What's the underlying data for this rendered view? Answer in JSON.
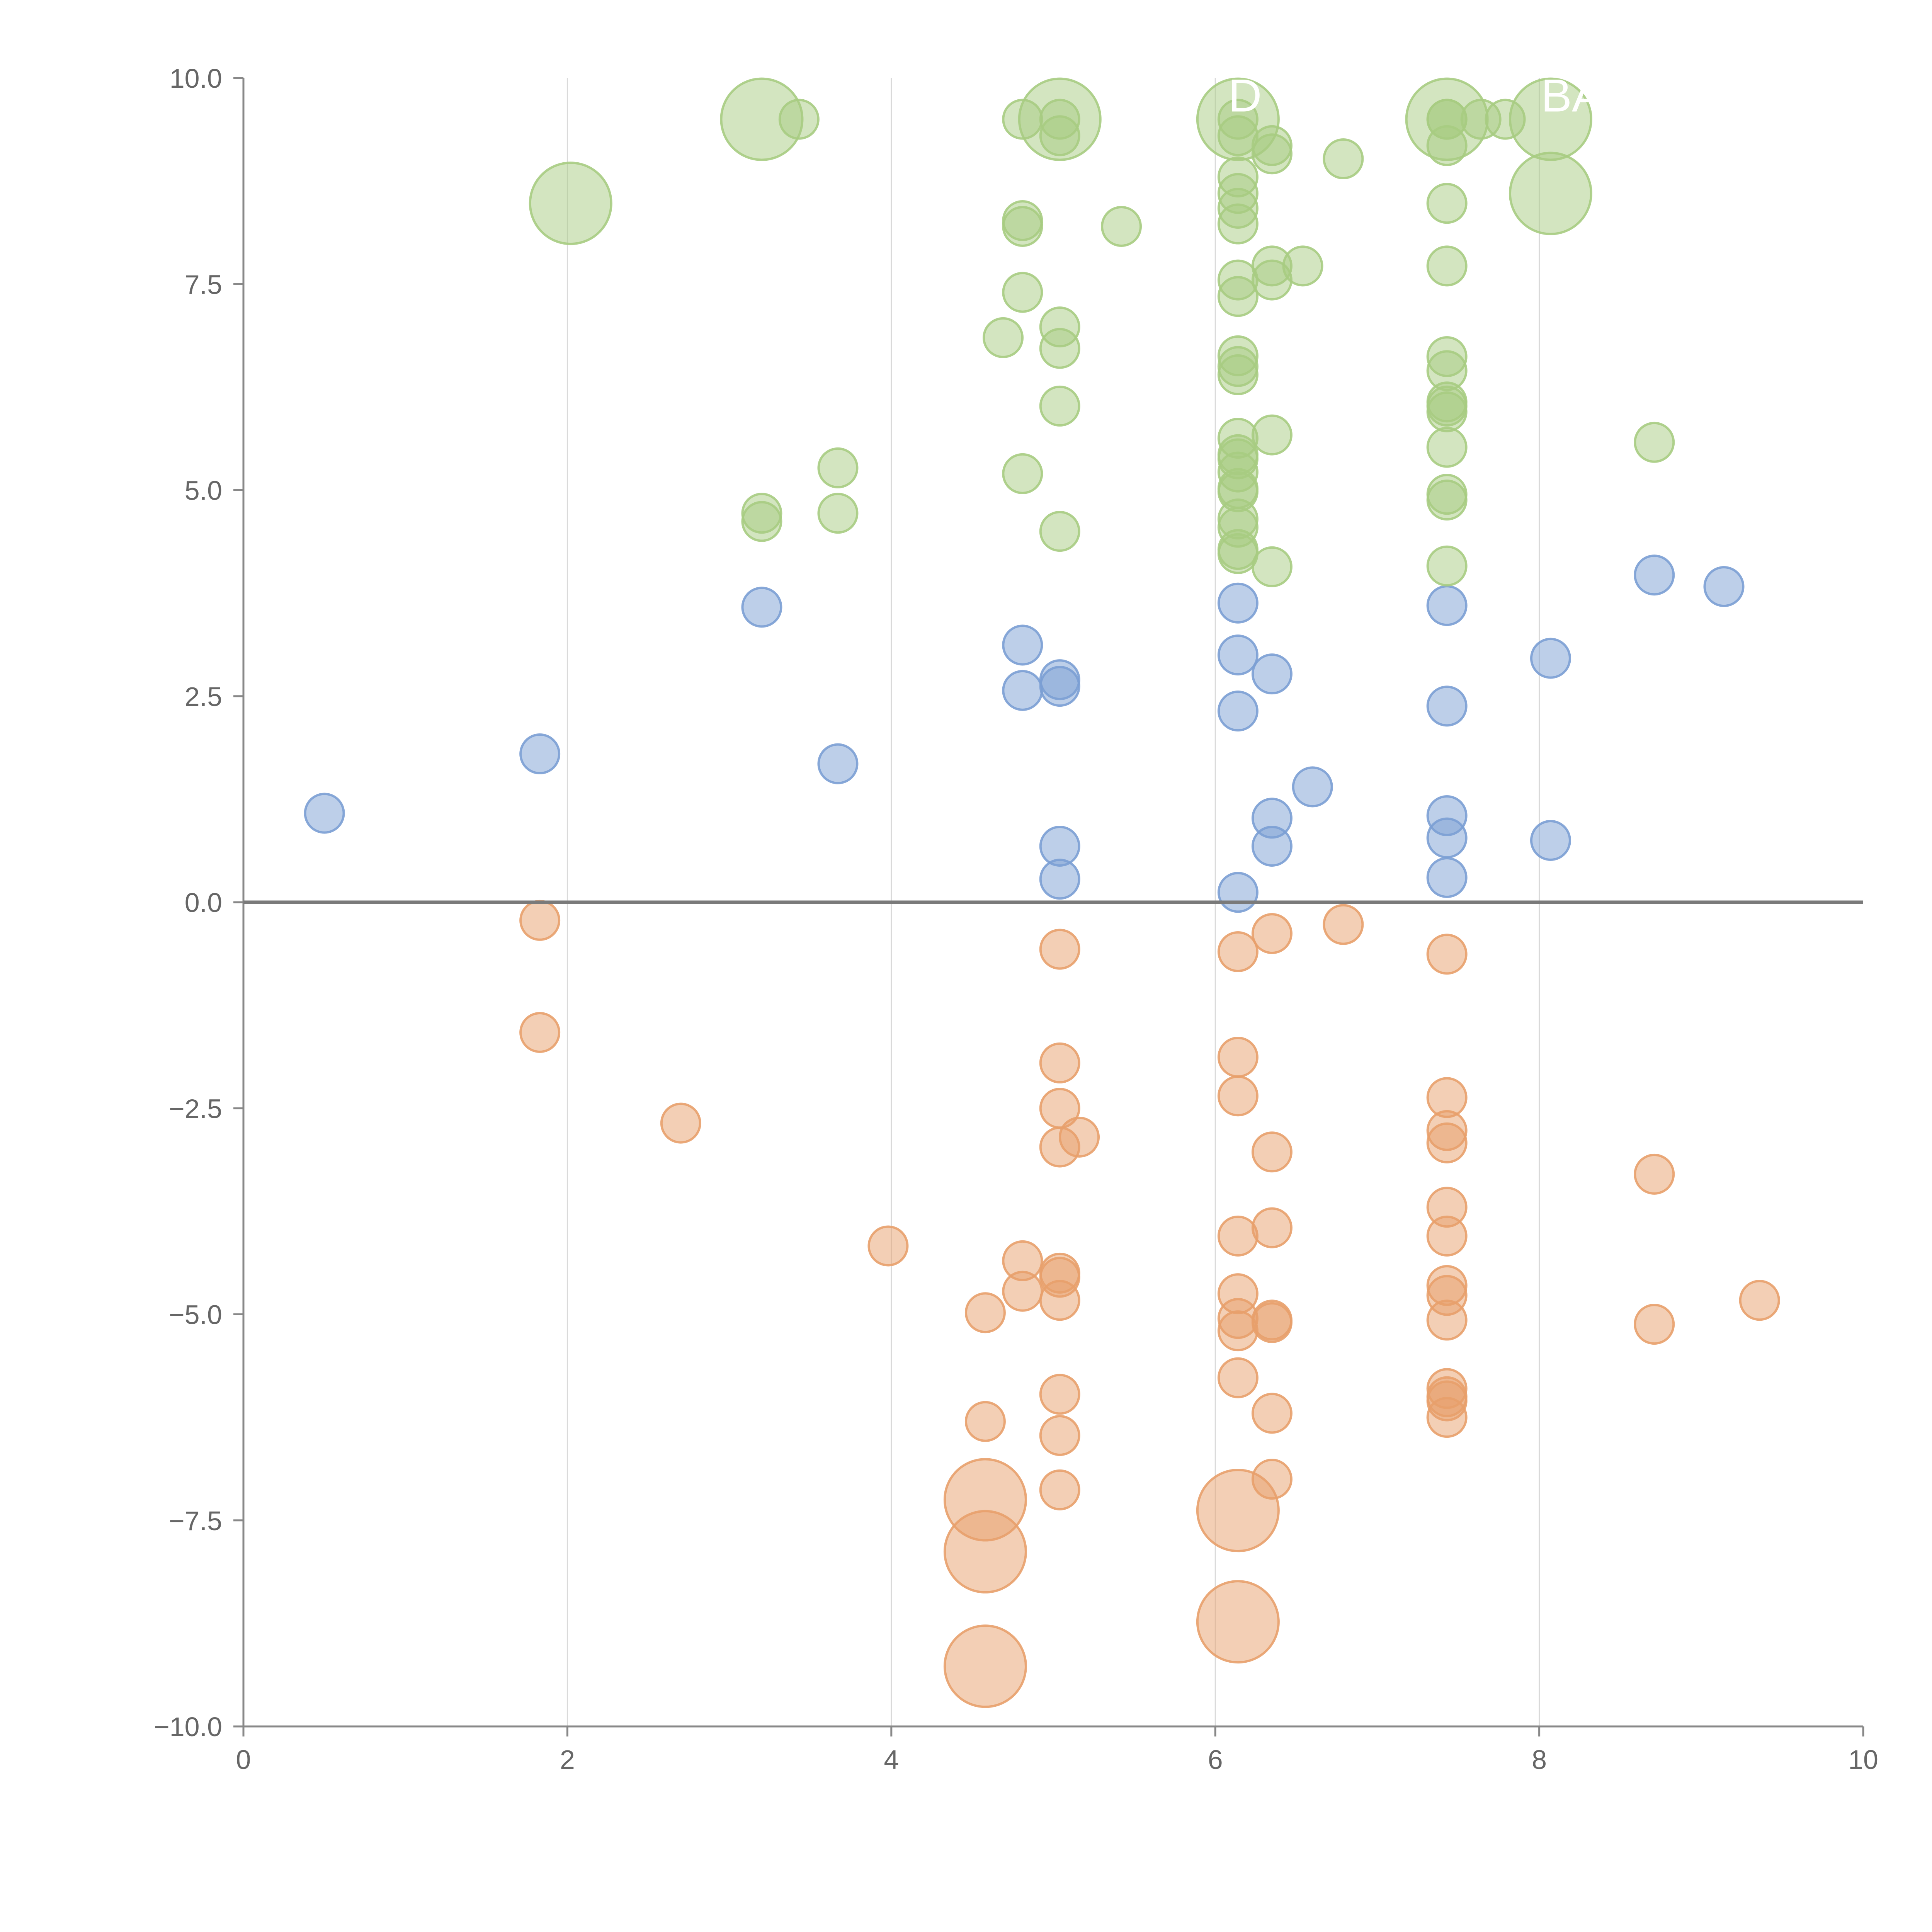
{
  "colors": {
    "blue": "#7b9fd4",
    "orange": "#e8a06c",
    "green": "#a7cc82",
    "axis": "#888888",
    "zero_line": "#7a7a7a",
    "grid": "#d9d9d9",
    "tick_text": "#666666",
    "label_text": "#ffffff"
  },
  "chart_data": {
    "type": "scatter",
    "variant": "bubble",
    "title": "",
    "xlabel": "",
    "ylabel": "",
    "xlim": [
      0,
      10
    ],
    "ylim": [
      -10,
      10
    ],
    "grid": "vertical lines at x = 2, 4, 6, 8",
    "x_ticks": [
      {
        "value": 0,
        "label": "0"
      },
      {
        "value": 2,
        "label": "2"
      },
      {
        "value": 4,
        "label": "4"
      },
      {
        "value": 6,
        "label": "6"
      },
      {
        "value": 8,
        "label": "8"
      },
      {
        "value": 10,
        "label": "10"
      }
    ],
    "y_ticks": [
      {
        "value": 10,
        "label": "10.0"
      },
      {
        "value": 7.5,
        "label": "7.5"
      },
      {
        "value": 5,
        "label": "5.0"
      },
      {
        "value": 2.5,
        "label": "2.5"
      },
      {
        "value": 0,
        "label": "0.0"
      },
      {
        "value": -2.5,
        "label": "−2.5"
      },
      {
        "value": -5,
        "label": "−5.0"
      },
      {
        "value": -7.5,
        "label": "−7.5"
      },
      {
        "value": -10,
        "label": "−10.0"
      }
    ],
    "reference_line": {
      "axis": "y",
      "value": 0
    },
    "size_note": "relative bubble size, 1 = smallest",
    "series": [
      {
        "name": "blue",
        "color_key": "blue",
        "points": [
          {
            "x": 0.5,
            "y": 1.08,
            "s": 1
          },
          {
            "x": 1.83,
            "y": 1.8,
            "s": 1
          },
          {
            "x": 3.2,
            "y": 3.58,
            "s": 1
          },
          {
            "x": 3.67,
            "y": 1.68,
            "s": 1
          },
          {
            "x": 4.81,
            "y": 3.12,
            "s": 1
          },
          {
            "x": 4.81,
            "y": 2.57,
            "s": 1
          },
          {
            "x": 5.04,
            "y": 2.7,
            "s": 1
          },
          {
            "x": 5.04,
            "y": 2.62,
            "s": 1
          },
          {
            "x": 5.04,
            "y": 0.68,
            "s": 1
          },
          {
            "x": 5.04,
            "y": 0.28,
            "s": 1
          },
          {
            "x": 6.14,
            "y": 3.63,
            "s": 1
          },
          {
            "x": 6.14,
            "y": 3.0,
            "s": 1
          },
          {
            "x": 6.14,
            "y": 2.32,
            "s": 1
          },
          {
            "x": 6.14,
            "y": 0.12,
            "s": 1
          },
          {
            "x": 6.35,
            "y": 2.77,
            "s": 1
          },
          {
            "x": 6.35,
            "y": 1.02,
            "s": 1
          },
          {
            "x": 6.35,
            "y": 0.68,
            "s": 1
          },
          {
            "x": 6.6,
            "y": 1.4,
            "s": 1
          },
          {
            "x": 7.43,
            "y": 3.6,
            "s": 1
          },
          {
            "x": 7.43,
            "y": 2.38,
            "s": 1
          },
          {
            "x": 7.43,
            "y": 1.05,
            "s": 1
          },
          {
            "x": 7.43,
            "y": 0.78,
            "s": 1
          },
          {
            "x": 7.43,
            "y": 0.3,
            "s": 1
          },
          {
            "x": 8.07,
            "y": 2.96,
            "s": 1
          },
          {
            "x": 8.07,
            "y": 0.75,
            "s": 1
          },
          {
            "x": 8.71,
            "y": 3.97,
            "s": 1
          },
          {
            "x": 9.14,
            "y": 3.83,
            "s": 1
          }
        ]
      },
      {
        "name": "orange",
        "color_key": "orange",
        "points": [
          {
            "x": 1.83,
            "y": -0.22,
            "s": 1
          },
          {
            "x": 1.83,
            "y": -1.58,
            "s": 1
          },
          {
            "x": 2.7,
            "y": -2.68,
            "s": 1
          },
          {
            "x": 3.98,
            "y": -4.17,
            "s": 1
          },
          {
            "x": 4.58,
            "y": -4.98,
            "s": 1
          },
          {
            "x": 4.58,
            "y": -6.3,
            "s": 1
          },
          {
            "x": 4.58,
            "y": -7.25,
            "s": 2.1
          },
          {
            "x": 4.58,
            "y": -7.88,
            "s": 2.1
          },
          {
            "x": 4.58,
            "y": -9.27,
            "s": 2.1
          },
          {
            "x": 4.81,
            "y": -4.35,
            "s": 1
          },
          {
            "x": 4.81,
            "y": -4.72,
            "s": 1
          },
          {
            "x": 5.04,
            "y": -0.57,
            "s": 1
          },
          {
            "x": 5.04,
            "y": -1.95,
            "s": 1
          },
          {
            "x": 5.04,
            "y": -2.5,
            "s": 1
          },
          {
            "x": 5.04,
            "y": -2.97,
            "s": 1
          },
          {
            "x": 5.16,
            "y": -2.85,
            "s": 1
          },
          {
            "x": 5.04,
            "y": -4.5,
            "s": 1
          },
          {
            "x": 5.04,
            "y": -4.55,
            "s": 1
          },
          {
            "x": 5.04,
            "y": -4.83,
            "s": 1
          },
          {
            "x": 5.04,
            "y": -5.97,
            "s": 1
          },
          {
            "x": 5.04,
            "y": -6.47,
            "s": 1
          },
          {
            "x": 5.04,
            "y": -7.13,
            "s": 1
          },
          {
            "x": 6.14,
            "y": -0.6,
            "s": 1
          },
          {
            "x": 6.14,
            "y": -1.88,
            "s": 1
          },
          {
            "x": 6.14,
            "y": -2.35,
            "s": 1
          },
          {
            "x": 6.14,
            "y": -4.05,
            "s": 1
          },
          {
            "x": 6.14,
            "y": -4.75,
            "s": 1
          },
          {
            "x": 6.14,
            "y": -5.05,
            "s": 1
          },
          {
            "x": 6.14,
            "y": -5.2,
            "s": 1
          },
          {
            "x": 6.14,
            "y": -5.77,
            "s": 1
          },
          {
            "x": 6.14,
            "y": -7.38,
            "s": 2.1
          },
          {
            "x": 6.14,
            "y": -8.73,
            "s": 2.1
          },
          {
            "x": 6.35,
            "y": -0.38,
            "s": 1
          },
          {
            "x": 6.35,
            "y": -3.03,
            "s": 1
          },
          {
            "x": 6.35,
            "y": -3.95,
            "s": 1
          },
          {
            "x": 6.35,
            "y": -5.07,
            "s": 1
          },
          {
            "x": 6.35,
            "y": -5.1,
            "s": 1
          },
          {
            "x": 6.35,
            "y": -6.2,
            "s": 1
          },
          {
            "x": 6.35,
            "y": -7.0,
            "s": 1
          },
          {
            "x": 6.79,
            "y": -0.27,
            "s": 1
          },
          {
            "x": 7.43,
            "y": -0.63,
            "s": 1
          },
          {
            "x": 7.43,
            "y": -2.37,
            "s": 1
          },
          {
            "x": 7.43,
            "y": -2.77,
            "s": 1
          },
          {
            "x": 7.43,
            "y": -2.92,
            "s": 1
          },
          {
            "x": 7.43,
            "y": -3.7,
            "s": 1
          },
          {
            "x": 7.43,
            "y": -4.05,
            "s": 1
          },
          {
            "x": 7.43,
            "y": -4.65,
            "s": 1
          },
          {
            "x": 7.43,
            "y": -4.77,
            "s": 1
          },
          {
            "x": 7.43,
            "y": -5.07,
            "s": 1
          },
          {
            "x": 7.43,
            "y": -5.9,
            "s": 1
          },
          {
            "x": 7.43,
            "y": -6.0,
            "s": 1
          },
          {
            "x": 7.43,
            "y": -6.05,
            "s": 1
          },
          {
            "x": 7.43,
            "y": -6.25,
            "s": 1
          },
          {
            "x": 8.71,
            "y": -3.3,
            "s": 1
          },
          {
            "x": 8.71,
            "y": -5.12,
            "s": 1
          },
          {
            "x": 9.36,
            "y": -4.83,
            "s": 1
          }
        ]
      },
      {
        "name": "green",
        "color_key": "green",
        "points": [
          {
            "x": 2.02,
            "y": 8.48,
            "s": 2.1
          },
          {
            "x": 3.2,
            "y": 9.5,
            "s": 2.1
          },
          {
            "x": 3.43,
            "y": 9.5,
            "s": 1
          },
          {
            "x": 3.2,
            "y": 4.72,
            "s": 1
          },
          {
            "x": 3.2,
            "y": 4.62,
            "s": 1
          },
          {
            "x": 3.67,
            "y": 5.27,
            "s": 1
          },
          {
            "x": 3.67,
            "y": 4.72,
            "s": 1
          },
          {
            "x": 4.69,
            "y": 6.85,
            "s": 1
          },
          {
            "x": 4.81,
            "y": 9.5,
            "s": 1
          },
          {
            "x": 4.81,
            "y": 8.27,
            "s": 1
          },
          {
            "x": 4.81,
            "y": 8.2,
            "s": 1
          },
          {
            "x": 4.81,
            "y": 7.4,
            "s": 1
          },
          {
            "x": 4.81,
            "y": 5.2,
            "s": 1
          },
          {
            "x": 5.04,
            "y": 9.5,
            "s": 2.1
          },
          {
            "x": 5.04,
            "y": 9.5,
            "s": 1
          },
          {
            "x": 5.04,
            "y": 9.3,
            "s": 1
          },
          {
            "x": 5.04,
            "y": 6.98,
            "s": 1
          },
          {
            "x": 5.04,
            "y": 6.72,
            "s": 1
          },
          {
            "x": 5.04,
            "y": 6.02,
            "s": 1
          },
          {
            "x": 5.04,
            "y": 4.5,
            "s": 1
          },
          {
            "x": 5.42,
            "y": 8.2,
            "s": 1
          },
          {
            "x": 6.14,
            "y": 9.5,
            "s": 2.1
          },
          {
            "x": 6.14,
            "y": 9.5,
            "s": 1
          },
          {
            "x": 6.14,
            "y": 9.3,
            "s": 1
          },
          {
            "x": 6.14,
            "y": 8.8,
            "s": 1
          },
          {
            "x": 6.14,
            "y": 8.6,
            "s": 1
          },
          {
            "x": 6.14,
            "y": 8.42,
            "s": 1
          },
          {
            "x": 6.14,
            "y": 8.23,
            "s": 1
          },
          {
            "x": 6.14,
            "y": 7.55,
            "s": 1
          },
          {
            "x": 6.14,
            "y": 7.35,
            "s": 1
          },
          {
            "x": 6.14,
            "y": 6.63,
            "s": 1
          },
          {
            "x": 6.14,
            "y": 6.5,
            "s": 1
          },
          {
            "x": 6.14,
            "y": 6.4,
            "s": 1
          },
          {
            "x": 6.14,
            "y": 5.63,
            "s": 1
          },
          {
            "x": 6.14,
            "y": 5.43,
            "s": 1
          },
          {
            "x": 6.14,
            "y": 5.38,
            "s": 1
          },
          {
            "x": 6.14,
            "y": 5.22,
            "s": 1
          },
          {
            "x": 6.14,
            "y": 5.02,
            "s": 1
          },
          {
            "x": 6.14,
            "y": 4.98,
            "s": 1
          },
          {
            "x": 6.14,
            "y": 4.65,
            "s": 1
          },
          {
            "x": 6.14,
            "y": 4.55,
            "s": 1
          },
          {
            "x": 6.14,
            "y": 4.28,
            "s": 1
          },
          {
            "x": 6.14,
            "y": 4.23,
            "s": 1
          },
          {
            "x": 6.35,
            "y": 9.18,
            "s": 1
          },
          {
            "x": 6.35,
            "y": 9.08,
            "s": 1
          },
          {
            "x": 6.35,
            "y": 7.72,
            "s": 1
          },
          {
            "x": 6.35,
            "y": 7.55,
            "s": 1
          },
          {
            "x": 6.35,
            "y": 5.67,
            "s": 1
          },
          {
            "x": 6.35,
            "y": 4.07,
            "s": 1
          },
          {
            "x": 6.54,
            "y": 7.72,
            "s": 1
          },
          {
            "x": 6.79,
            "y": 9.02,
            "s": 1
          },
          {
            "x": 7.43,
            "y": 9.5,
            "s": 2.1
          },
          {
            "x": 7.43,
            "y": 9.5,
            "s": 1
          },
          {
            "x": 7.43,
            "y": 9.5,
            "s": 1
          },
          {
            "x": 7.43,
            "y": 9.18,
            "s": 1
          },
          {
            "x": 7.43,
            "y": 8.48,
            "s": 1
          },
          {
            "x": 7.43,
            "y": 7.72,
            "s": 1
          },
          {
            "x": 7.43,
            "y": 6.62,
            "s": 1
          },
          {
            "x": 7.43,
            "y": 6.45,
            "s": 1
          },
          {
            "x": 7.43,
            "y": 6.07,
            "s": 1
          },
          {
            "x": 7.43,
            "y": 6.02,
            "s": 1
          },
          {
            "x": 7.43,
            "y": 5.95,
            "s": 1
          },
          {
            "x": 7.43,
            "y": 5.52,
            "s": 1
          },
          {
            "x": 7.43,
            "y": 4.95,
            "s": 1
          },
          {
            "x": 7.43,
            "y": 4.88,
            "s": 1
          },
          {
            "x": 7.43,
            "y": 4.08,
            "s": 1
          },
          {
            "x": 7.64,
            "y": 9.5,
            "s": 1
          },
          {
            "x": 7.79,
            "y": 9.5,
            "s": 1
          },
          {
            "x": 8.07,
            "y": 9.5,
            "s": 2.1
          },
          {
            "x": 8.07,
            "y": 8.6,
            "s": 2.1
          },
          {
            "x": 8.71,
            "y": 5.58,
            "s": 1
          }
        ]
      }
    ],
    "annotations": [
      {
        "text": "D",
        "x": 6.14,
        "y": 9.5
      },
      {
        "text": "BA",
        "x": 8.07,
        "y": 9.5
      }
    ]
  }
}
